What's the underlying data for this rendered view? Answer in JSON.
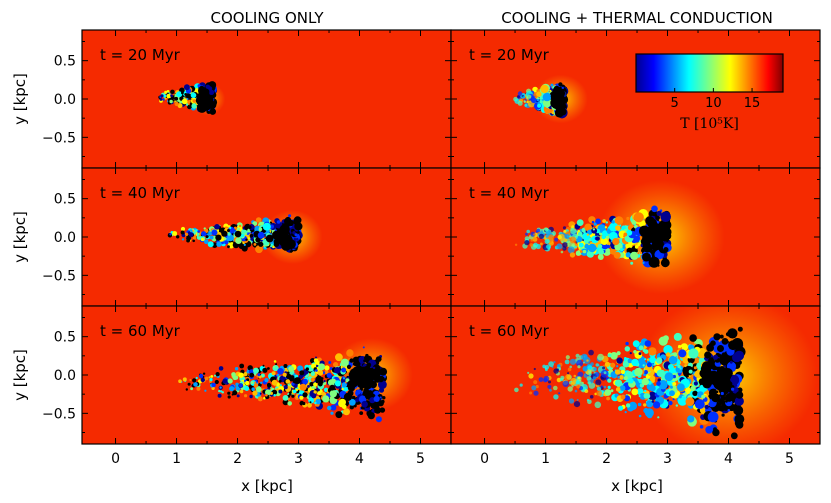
{
  "chart_data": {
    "type": "heatmap",
    "column_titles": [
      "COOLING ONLY",
      "COOLING + THERMAL CONDUCTION"
    ],
    "row_labels": [
      "t = 20 Myr",
      "t = 40 Myr",
      "t = 60 Myr"
    ],
    "xlabel": "x [kpc]",
    "ylabel": "y [kpc]",
    "xlim": [
      -0.55,
      5.5
    ],
    "ylim": [
      -0.9,
      0.9
    ],
    "xticks": [
      "0",
      "1",
      "2",
      "3",
      "4",
      "5"
    ],
    "yticks": [
      "0.5",
      "0.0",
      "−0.5"
    ],
    "colorbar": {
      "label": "T [10⁵K]",
      "ticks": [
        "5",
        "10",
        "15"
      ],
      "range": [
        0,
        19
      ],
      "colormap": "jet"
    },
    "panels": [
      {
        "column": 0,
        "row": 0,
        "time": "t = 20 Myr",
        "cloud_x_range": [
          0.7,
          1.6
        ],
        "cloud_head_x": 1.5,
        "cloud_y_range": [
          -0.2,
          0.25
        ]
      },
      {
        "column": 1,
        "row": 0,
        "time": "t = 20 Myr",
        "cloud_x_range": [
          0.5,
          1.3
        ],
        "cloud_head_x": 1.25,
        "cloud_y_range": [
          -0.25,
          0.25
        ]
      },
      {
        "column": 0,
        "row": 1,
        "time": "t = 40 Myr",
        "cloud_x_range": [
          0.8,
          3.0
        ],
        "cloud_head_x": 2.9,
        "cloud_y_range": [
          -0.25,
          0.3
        ]
      },
      {
        "column": 1,
        "row": 1,
        "time": "t = 40 Myr",
        "cloud_x_range": [
          0.5,
          3.0
        ],
        "cloud_head_x": 2.9,
        "cloud_y_range": [
          -0.45,
          0.4
        ]
      },
      {
        "column": 0,
        "row": 2,
        "time": "t = 60 Myr",
        "cloud_x_range": [
          1.0,
          4.4
        ],
        "cloud_head_x": 4.2,
        "cloud_y_range": [
          -0.6,
          0.4
        ]
      },
      {
        "column": 1,
        "row": 2,
        "time": "t = 60 Myr",
        "cloud_x_range": [
          0.5,
          4.2
        ],
        "cloud_head_x": 4.0,
        "cloud_y_range": [
          -0.85,
          0.75
        ]
      }
    ]
  },
  "colors": {
    "background": "#f52a00",
    "cold": "#000000",
    "jet": [
      "#00008f",
      "#0000ff",
      "#00ffff",
      "#80ff80",
      "#ffff00",
      "#ff8000",
      "#ff0000",
      "#800000"
    ]
  }
}
